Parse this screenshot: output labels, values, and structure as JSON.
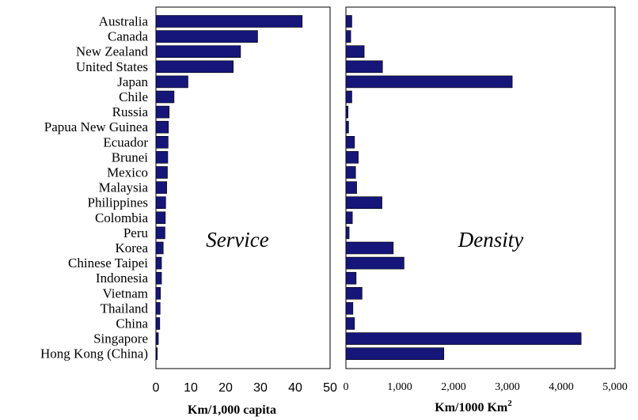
{
  "chart_data": [
    {
      "type": "bar",
      "orientation": "horizontal",
      "annotation": "Service",
      "xlabel": "Km/1,000 capita",
      "xlim": [
        0,
        50
      ],
      "xticks": [
        "0",
        "10",
        "20",
        "30",
        "40",
        "50"
      ],
      "categories": [
        "Australia",
        "Canada",
        "New Zealand",
        "United States",
        "Japan",
        "Chile",
        "Russia",
        "Papua New Guinea",
        "Ecuador",
        "Brunei",
        "Mexico",
        "Malaysia",
        "Philippines",
        "Colombia",
        "Peru",
        "Korea",
        "Chinese Taipei",
        "Indonesia",
        "Vietnam",
        "Thailand",
        "China",
        "Singapore",
        "Hong Kong (China)"
      ],
      "values": [
        42,
        29.2,
        24.3,
        22.2,
        9.2,
        5.2,
        3.8,
        3.6,
        3.5,
        3.4,
        3.3,
        3.1,
        2.8,
        2.7,
        2.6,
        2.1,
        1.6,
        1.6,
        1.3,
        1.2,
        1.1,
        0.7,
        0.4
      ]
    },
    {
      "type": "bar",
      "orientation": "horizontal",
      "annotation": "Density",
      "xlabel": "Km/1000 Km",
      "xlabel_superscript": "2",
      "xlim": [
        0,
        5000
      ],
      "xticks": [
        "0",
        "1,000",
        "2,000",
        "3,000",
        "4,000",
        "5,000"
      ],
      "categories": [
        "Australia",
        "Canada",
        "New Zealand",
        "United States",
        "Japan",
        "Chile",
        "Russia",
        "Papua New Guinea",
        "Ecuador",
        "Brunei",
        "Mexico",
        "Malaysia",
        "Philippines",
        "Colombia",
        "Peru",
        "Korea",
        "Chinese Taipei",
        "Indonesia",
        "Vietnam",
        "Thailand",
        "China",
        "Singapore",
        "Hong Kong (China)"
      ],
      "values": [
        110,
        90,
        340,
        680,
        3090,
        110,
        40,
        50,
        160,
        230,
        180,
        200,
        670,
        120,
        60,
        880,
        1080,
        190,
        300,
        130,
        160,
        4370,
        1820
      ]
    }
  ]
}
